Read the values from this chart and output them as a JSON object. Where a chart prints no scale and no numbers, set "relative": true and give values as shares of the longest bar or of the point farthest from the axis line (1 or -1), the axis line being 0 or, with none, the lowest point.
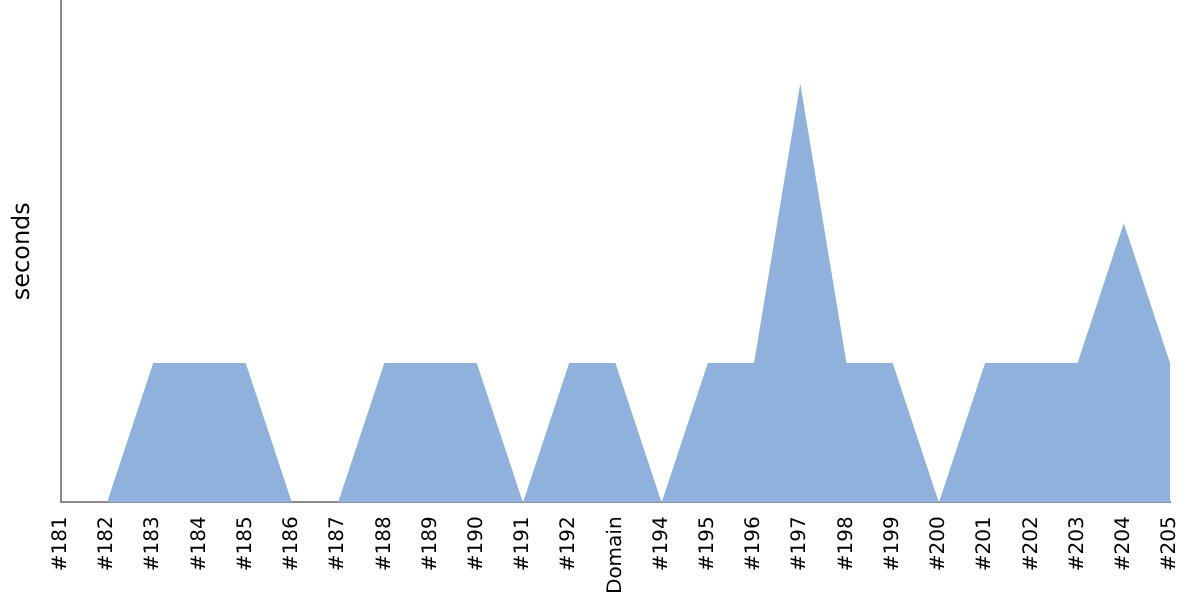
{
  "chart_data": {
    "type": "area",
    "ylabel": "seconds",
    "relative": true,
    "legend": false,
    "grid": false,
    "categories": [
      "#181",
      "#182",
      "#183",
      "#184",
      "#185",
      "#186",
      "#187",
      "#188",
      "#189",
      "#190",
      "#191",
      "#192",
      "Domain",
      "#194",
      "#195",
      "#196",
      "#197",
      "#198",
      "#199",
      "#200",
      "#201",
      "#202",
      "#203",
      "#204",
      "#205"
    ],
    "series": [
      {
        "color": "#8fb1db",
        "values": [
          0,
          0,
          0.333,
          0.333,
          0.333,
          0,
          0,
          0.333,
          0.333,
          0.333,
          0,
          0.333,
          0.333,
          0,
          0.333,
          0.333,
          1,
          0.333,
          0.333,
          0,
          0.333,
          0.333,
          0.333,
          0.667,
          0.333
        ]
      }
    ]
  }
}
